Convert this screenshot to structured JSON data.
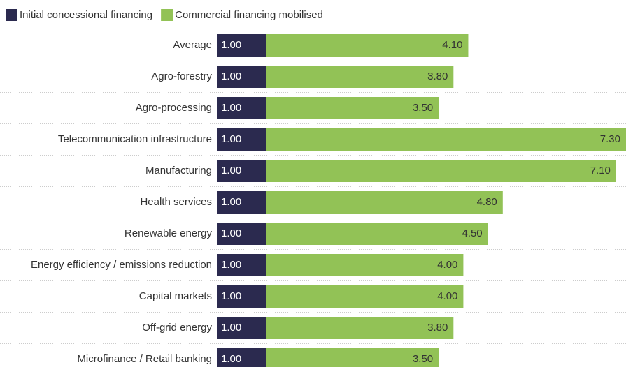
{
  "chart_data": {
    "type": "stacked-barh",
    "categories": [
      "Average",
      "Agro-forestry",
      "Agro-processing",
      "Telecommunication infrastructure",
      "Manufacturing",
      "Health services",
      "Renewable energy",
      "Energy efficiency / emissions reduction",
      "Capital markets",
      "Off-grid energy",
      "Microfinance / Retail banking"
    ],
    "series": [
      {
        "name": "Initial concessional financing",
        "color": "#2b2a4f",
        "values": [
          1,
          1,
          1,
          1,
          1,
          1,
          1,
          1,
          1,
          1,
          1
        ],
        "value_labels": [
          "1.00",
          "1.00",
          "1.00",
          "1.00",
          "1.00",
          "1.00",
          "1.00",
          "1.00",
          "1.00",
          "1.00",
          "1.00"
        ]
      },
      {
        "name": "Commercial financing mobilised",
        "color": "#92c256",
        "values": [
          4.1,
          3.8,
          3.5,
          7.3,
          7.1,
          4.8,
          4.5,
          4.0,
          4.0,
          3.8,
          3.5
        ],
        "value_labels": [
          "4.10",
          "3.80",
          "3.50",
          "7.30",
          "7.10",
          "4.80",
          "4.50",
          "4.00",
          "4.00",
          "3.80",
          "3.50"
        ]
      }
    ],
    "xlim": [
      0,
      8.3
    ],
    "legend": "top-left"
  }
}
